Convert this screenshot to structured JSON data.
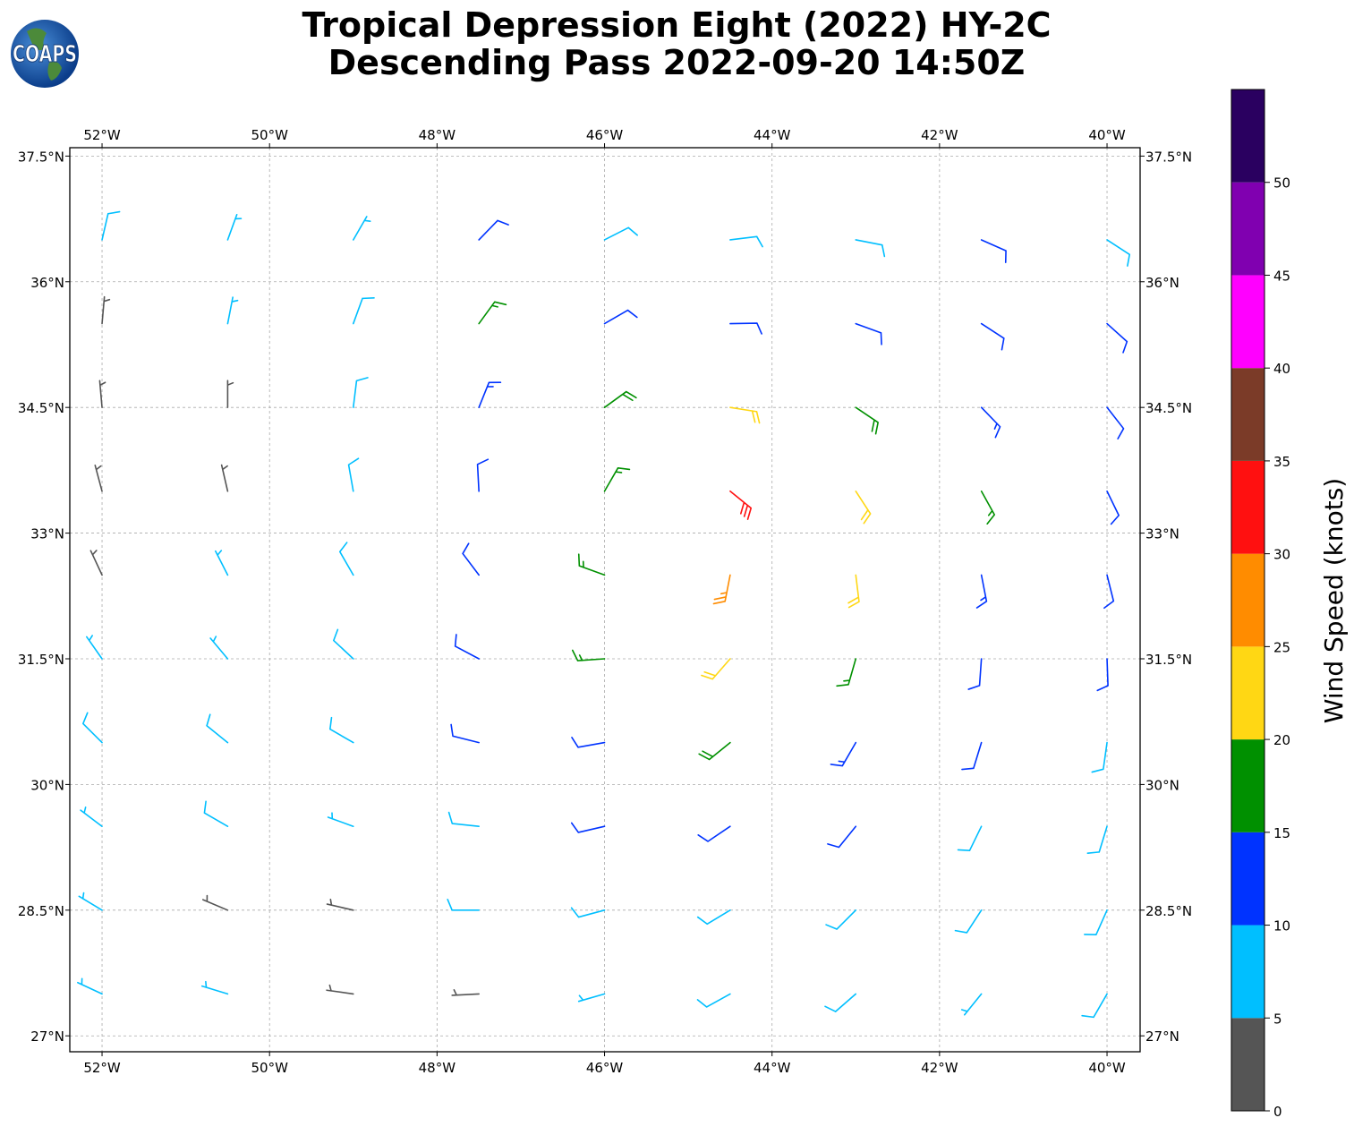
{
  "chart_data": {
    "type": "barb",
    "logo": "COAPS",
    "title": [
      "Tropical Depression Eight (2022) HY-2C",
      "Descending Pass 2022-09-20 14:50Z"
    ],
    "xlim": [
      -52.385,
      -39.605
    ],
    "ylim": [
      26.81,
      37.6
    ],
    "xticks": [
      {
        "value": -52,
        "label": "52°W"
      },
      {
        "value": -50,
        "label": "50°W"
      },
      {
        "value": -48,
        "label": "48°W"
      },
      {
        "value": -46,
        "label": "46°W"
      },
      {
        "value": -44,
        "label": "44°W"
      },
      {
        "value": -42,
        "label": "42°W"
      },
      {
        "value": -40,
        "label": "40°W"
      }
    ],
    "yticks": [
      {
        "value": 27,
        "label": "27°N"
      },
      {
        "value": 28.5,
        "label": "28.5°N"
      },
      {
        "value": 30,
        "label": "30°N"
      },
      {
        "value": 31.5,
        "label": "31.5°N"
      },
      {
        "value": 33,
        "label": "33°N"
      },
      {
        "value": 34.5,
        "label": "34.5°N"
      },
      {
        "value": 36,
        "label": "36°N"
      },
      {
        "value": 37.5,
        "label": "37.5°N"
      }
    ],
    "grid": true,
    "colorbar": {
      "label": "Wind Speed (knots)",
      "lim": [
        0,
        55
      ],
      "bounds": [
        0,
        5,
        10,
        15,
        20,
        25,
        30,
        35,
        40,
        45,
        50,
        55
      ],
      "colors": [
        "#555555",
        "#00bfff",
        "#0033ff",
        "#009000",
        "#ffd714",
        "#ff8c00",
        "#ff1010",
        "#7b3b28",
        "#ff00ff",
        "#8000b0",
        "#2a0060"
      ],
      "ticks": [
        0,
        5,
        10,
        15,
        20,
        25,
        30,
        35,
        40,
        45,
        50
      ]
    },
    "barbs": {
      "lon": [
        -52,
        -50.5,
        -49,
        -47.5,
        -46,
        -44.5,
        -43,
        -41.5,
        -40
      ],
      "lat": [
        36.5,
        35.5,
        34.5,
        33.5,
        32.5,
        31.5,
        30.5,
        29.5,
        28.5,
        27.5
      ],
      "speed": [
        [
          8,
          6,
          7,
          12,
          9,
          8,
          9,
          12,
          9
        ],
        [
          4,
          5,
          8,
          17,
          12,
          10,
          10,
          12,
          10
        ],
        [
          4,
          3,
          9,
          13,
          18,
          20,
          18,
          13,
          10
        ],
        [
          3,
          3,
          8,
          12,
          17,
          30,
          22,
          15,
          12
        ],
        [
          4,
          6,
          8,
          11,
          16,
          25,
          20,
          14,
          11
        ],
        [
          6,
          7,
          8,
          12,
          15,
          22,
          17,
          12,
          10
        ],
        [
          8,
          8,
          8,
          10,
          12,
          18,
          14,
          10,
          9
        ],
        [
          7,
          8,
          7,
          9,
          10,
          12,
          11,
          9,
          8
        ],
        [
          7,
          4,
          3,
          8,
          8,
          9,
          9,
          8,
          8
        ],
        [
          7,
          6,
          3,
          4,
          5,
          8,
          8,
          7,
          8
        ]
      ],
      "direction": [
        [
          13,
          20,
          30,
          44,
          63,
          83,
          101,
          114,
          123
        ],
        [
          5,
          11,
          20,
          36,
          60,
          89,
          110,
          123,
          132
        ],
        [
          355,
          0,
          7,
          22,
          54,
          99,
          124,
          136,
          142
        ],
        [
          345,
          347,
          350,
          357,
          30,
          129,
          147,
          151,
          154
        ],
        [
          335,
          333,
          330,
          323,
          290,
          191,
          173,
          169,
          166
        ],
        [
          325,
          320,
          313,
          298,
          266,
          221,
          196,
          184,
          178
        ],
        [
          315,
          309,
          300,
          284,
          260,
          231,
          210,
          197,
          188
        ],
        [
          307,
          300,
          290,
          276,
          257,
          236,
          219,
          206,
          197
        ],
        [
          301,
          293,
          283,
          270,
          255,
          239,
          225,
          213,
          204
        ],
        [
          295,
          287,
          278,
          267,
          254,
          241,
          229,
          219,
          210
        ]
      ]
    }
  }
}
